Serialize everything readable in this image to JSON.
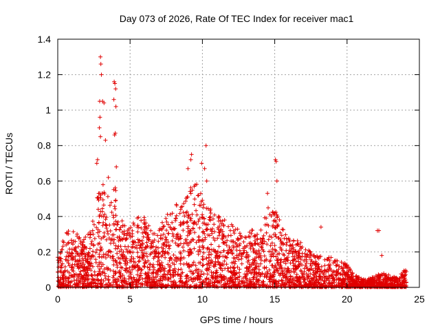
{
  "chart_data": {
    "type": "scatter",
    "title": "Day 073 of 2026, Rate Of TEC Index for receiver mac1",
    "xlabel": "GPS time / hours",
    "ylabel": "ROTI / TECUs",
    "xlim": [
      0,
      25
    ],
    "ylim": [
      0,
      1.4
    ],
    "xticks": [
      0,
      5,
      10,
      15,
      20,
      25
    ],
    "yticks": [
      0,
      0.2,
      0.4,
      0.6,
      0.8,
      1,
      1.2,
      1.4
    ],
    "ytick_labels": [
      "0",
      "0.2",
      "0.4",
      "0.6",
      "0.8",
      "1",
      "1.2",
      "1.4"
    ],
    "grid": true,
    "marker": "+",
    "color": "#e00000",
    "series_envelope": {
      "description": "approximate upper envelope of the dense point cloud, hours vs ROTI",
      "x": [
        0,
        0.5,
        1,
        1.5,
        2,
        2.5,
        2.8,
        3,
        3.3,
        3.6,
        4,
        4.5,
        5,
        5.5,
        6,
        6.5,
        7,
        7.5,
        8,
        8.5,
        9,
        9.5,
        10,
        10.5,
        11,
        11.5,
        12,
        12.5,
        13,
        13.5,
        14,
        14.5,
        15,
        15.5,
        16,
        16.5,
        17,
        17.5,
        18,
        18.5,
        19,
        19.5,
        20,
        20.5,
        21,
        21.5,
        22,
        22.5,
        23,
        23.5,
        24
      ],
      "y": [
        0.2,
        0.3,
        0.35,
        0.3,
        0.28,
        0.4,
        0.6,
        0.65,
        0.55,
        0.5,
        0.6,
        0.35,
        0.35,
        0.4,
        0.4,
        0.33,
        0.35,
        0.4,
        0.5,
        0.45,
        0.55,
        0.6,
        0.55,
        0.45,
        0.42,
        0.4,
        0.38,
        0.33,
        0.3,
        0.33,
        0.35,
        0.45,
        0.45,
        0.35,
        0.28,
        0.27,
        0.25,
        0.2,
        0.18,
        0.17,
        0.17,
        0.15,
        0.13,
        0.07,
        0.05,
        0.05,
        0.07,
        0.08,
        0.07,
        0.06,
        0.1
      ]
    },
    "outliers": [
      {
        "x": 2.95,
        "y": 1.3
      },
      {
        "x": 2.98,
        "y": 1.26
      },
      {
        "x": 3.02,
        "y": 1.2
      },
      {
        "x": 2.9,
        "y": 1.05
      },
      {
        "x": 3.1,
        "y": 1.05
      },
      {
        "x": 3.2,
        "y": 1.04
      },
      {
        "x": 2.92,
        "y": 0.96
      },
      {
        "x": 2.88,
        "y": 0.9
      },
      {
        "x": 2.95,
        "y": 0.85
      },
      {
        "x": 3.3,
        "y": 0.83
      },
      {
        "x": 3.9,
        "y": 1.16
      },
      {
        "x": 3.95,
        "y": 1.15
      },
      {
        "x": 4.0,
        "y": 1.12
      },
      {
        "x": 3.88,
        "y": 1.06
      },
      {
        "x": 4.02,
        "y": 1.02
      },
      {
        "x": 3.98,
        "y": 0.87
      },
      {
        "x": 3.93,
        "y": 0.86
      },
      {
        "x": 9.25,
        "y": 0.75
      },
      {
        "x": 9.2,
        "y": 0.72
      },
      {
        "x": 9.0,
        "y": 0.67
      },
      {
        "x": 10.25,
        "y": 0.8
      },
      {
        "x": 9.95,
        "y": 0.7
      },
      {
        "x": 10.15,
        "y": 0.67
      },
      {
        "x": 10.3,
        "y": 0.6
      },
      {
        "x": 15.05,
        "y": 0.72
      },
      {
        "x": 15.1,
        "y": 0.71
      },
      {
        "x": 15.15,
        "y": 0.6
      },
      {
        "x": 14.5,
        "y": 0.53
      },
      {
        "x": 18.2,
        "y": 0.34
      },
      {
        "x": 22.1,
        "y": 0.32
      },
      {
        "x": 22.2,
        "y": 0.32
      },
      {
        "x": 22.4,
        "y": 0.18
      },
      {
        "x": 2.7,
        "y": 0.7
      },
      {
        "x": 2.75,
        "y": 0.72
      },
      {
        "x": 3.5,
        "y": 0.62
      },
      {
        "x": 4.05,
        "y": 0.68
      }
    ]
  }
}
